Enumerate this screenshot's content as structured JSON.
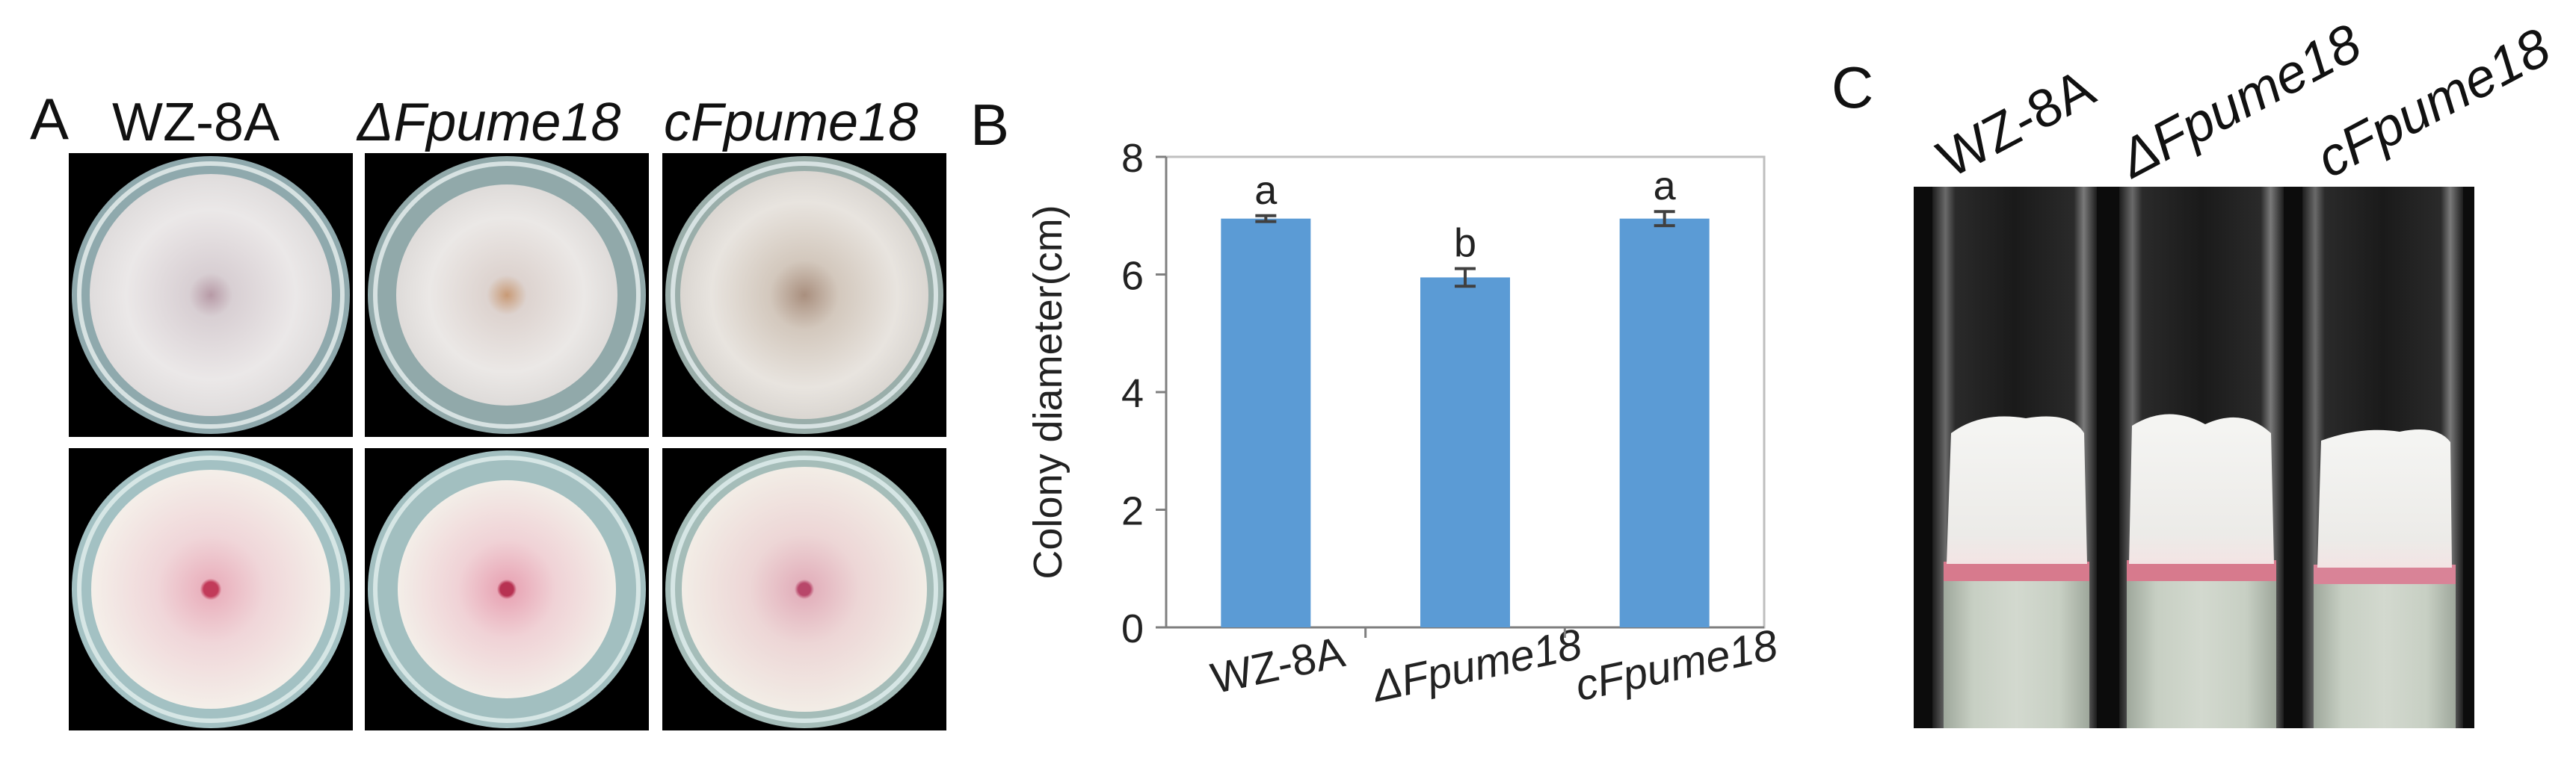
{
  "panels": {
    "a": {
      "letter": "A",
      "columns": [
        "WZ-8A",
        "ΔFpume18",
        "cFpume18"
      ],
      "colors": {
        "front_mycelium": "#e6e1e2",
        "back_mycelium": "#f1dcdc",
        "center_pink": "#c23b5a",
        "agar_blue": "#8fa9ad"
      }
    },
    "b": {
      "letter": "B"
    },
    "c": {
      "letter": "C",
      "columns": [
        "WZ-8A",
        "ΔFpume18",
        "cFpume18"
      ],
      "colors": {
        "mycelium": "#f2f2f0",
        "pink_band": "#d77a8d",
        "medium": "#c7cfc3"
      }
    }
  },
  "chart_data": {
    "type": "bar",
    "categories": [
      "WZ-8A",
      "ΔFpume18",
      "cFpume18"
    ],
    "values": [
      6.95,
      5.95,
      6.95
    ],
    "errors": [
      0.05,
      0.15,
      0.12
    ],
    "significance": [
      "a",
      "b",
      "a"
    ],
    "title": "",
    "xlabel": "",
    "ylabel": "Colony diameter(cm)",
    "ylim": [
      0,
      8
    ],
    "yticks": [
      0,
      2,
      4,
      6,
      8
    ],
    "bar_color": "#5b9bd5",
    "grid": false,
    "italic_categories": [
      false,
      true,
      true
    ]
  }
}
